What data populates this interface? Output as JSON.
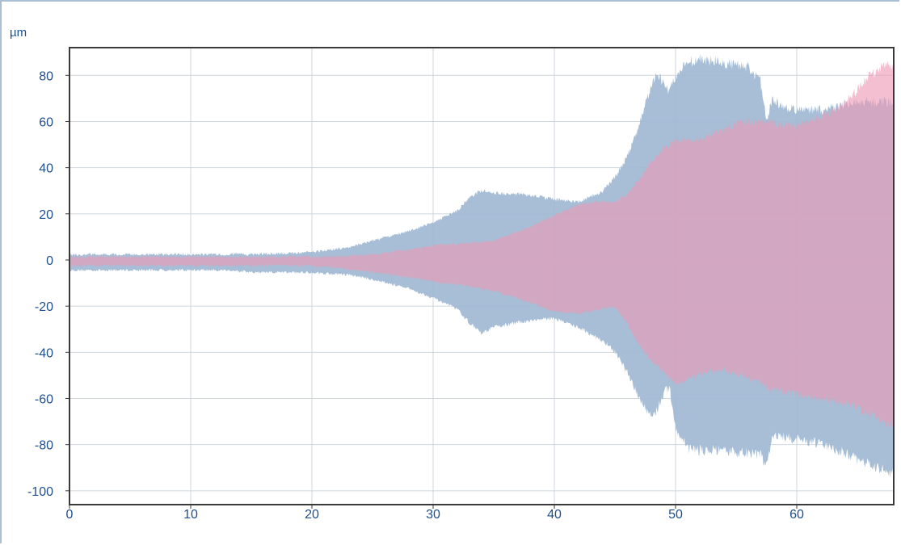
{
  "chart_data": {
    "type": "area",
    "ylabel": "µm",
    "xlabel": "",
    "xlim": [
      0,
      68
    ],
    "ylim": [
      -106,
      92
    ],
    "x_ticks": [
      0,
      10,
      20,
      30,
      40,
      50,
      60
    ],
    "y_ticks": [
      80,
      60,
      40,
      20,
      0,
      -20,
      -40,
      -60,
      -80,
      -100
    ],
    "grid": true,
    "colors": {
      "series_blue": "#9fb8d3",
      "series_pink": "#ee9ab4",
      "overlap": "#97809f",
      "axis": "#3a3a3a",
      "grid": "#cfd6de",
      "tick_text": "#1f4e8c"
    },
    "series": [
      {
        "color": "#9fb8d3",
        "x": [
          0,
          5,
          10,
          13,
          15,
          20,
          23,
          25,
          28,
          30,
          32,
          33,
          34,
          35,
          38,
          40,
          42,
          44,
          45,
          46,
          47,
          48,
          48.5,
          49,
          49.5,
          50,
          51,
          52,
          53,
          54,
          55,
          56,
          57,
          57.5,
          58,
          59,
          60,
          62,
          63,
          64,
          65,
          66,
          67,
          68
        ],
        "upper": [
          3,
          3,
          3,
          3,
          3,
          4,
          6,
          9,
          13,
          17,
          22,
          28,
          31,
          30,
          29,
          27,
          26,
          31,
          37,
          46,
          60,
          78,
          84,
          78,
          75,
          82,
          88,
          90,
          89,
          88,
          87,
          86,
          80,
          62,
          72,
          68,
          67,
          67,
          68,
          70,
          71,
          71,
          71,
          71
        ],
        "lower": [
          -5,
          -5,
          -5,
          -5,
          -6,
          -6,
          -7,
          -9,
          -13,
          -17,
          -22,
          -28,
          -33,
          -30,
          -27,
          -26,
          -30,
          -36,
          -41,
          -50,
          -62,
          -70,
          -67,
          -60,
          -57,
          -75,
          -84,
          -85,
          -85,
          -86,
          -86,
          -86,
          -87,
          -92,
          -78,
          -79,
          -80,
          -82,
          -84,
          -86,
          -89,
          -91,
          -93,
          -95
        ]
      },
      {
        "color": "#ee9ab4",
        "x": [
          0,
          5,
          10,
          15,
          20,
          22,
          25,
          28,
          30,
          33,
          35,
          38,
          40,
          42,
          44,
          45,
          46,
          47,
          48,
          49,
          50,
          52,
          54,
          55,
          57,
          58,
          60,
          62,
          64,
          65,
          66,
          67,
          68
        ],
        "upper": [
          2,
          2,
          2,
          2,
          2,
          2,
          3,
          5,
          7,
          8,
          9,
          15,
          20,
          25,
          26,
          26,
          29,
          36,
          44,
          50,
          53,
          54,
          58,
          61,
          62,
          61,
          60,
          64,
          70,
          76,
          82,
          86,
          87
        ],
        "lower": [
          -3,
          -3,
          -3,
          -3,
          -3,
          -4,
          -6,
          -8,
          -10,
          -12,
          -14,
          -19,
          -23,
          -24,
          -22,
          -21,
          -28,
          -38,
          -45,
          -50,
          -55,
          -51,
          -49,
          -51,
          -55,
          -58,
          -60,
          -62,
          -64,
          -66,
          -69,
          -72,
          -74
        ]
      }
    ]
  }
}
